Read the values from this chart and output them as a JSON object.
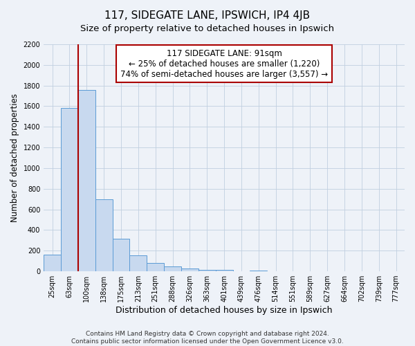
{
  "title": "117, SIDEGATE LANE, IPSWICH, IP4 4JB",
  "subtitle": "Size of property relative to detached houses in Ipswich",
  "xlabel": "Distribution of detached houses by size in Ipswich",
  "ylabel": "Number of detached properties",
  "categories": [
    "25sqm",
    "63sqm",
    "100sqm",
    "138sqm",
    "175sqm",
    "213sqm",
    "251sqm",
    "288sqm",
    "326sqm",
    "363sqm",
    "401sqm",
    "439sqm",
    "476sqm",
    "514sqm",
    "551sqm",
    "589sqm",
    "627sqm",
    "664sqm",
    "702sqm",
    "739sqm",
    "777sqm"
  ],
  "values": [
    160,
    1580,
    1760,
    700,
    315,
    155,
    80,
    50,
    25,
    15,
    12,
    0,
    10,
    0,
    0,
    0,
    0,
    0,
    0,
    0,
    0
  ],
  "bar_color": "#c8d9ef",
  "bar_edge_color": "#5b9bd5",
  "vline_x_index": 2,
  "vline_color": "#aa0000",
  "annotation_line1": "117 SIDEGATE LANE: 91sqm",
  "annotation_line2": "← 25% of detached houses are smaller (1,220)",
  "annotation_line3": "74% of semi-detached houses are larger (3,557) →",
  "annotation_fontsize": 8.5,
  "annotation_box_color": "white",
  "annotation_box_edgecolor": "#aa0000",
  "ylim": [
    0,
    2200
  ],
  "yticks": [
    0,
    200,
    400,
    600,
    800,
    1000,
    1200,
    1400,
    1600,
    1800,
    2000,
    2200
  ],
  "grid_color": "#c0cfe0",
  "footer_line1": "Contains HM Land Registry data © Crown copyright and database right 2024.",
  "footer_line2": "Contains public sector information licensed under the Open Government Licence v3.0.",
  "background_color": "#eef2f8",
  "title_fontsize": 11,
  "subtitle_fontsize": 9.5,
  "xlabel_fontsize": 9,
  "ylabel_fontsize": 8.5,
  "tick_fontsize": 7,
  "footer_fontsize": 6.5
}
